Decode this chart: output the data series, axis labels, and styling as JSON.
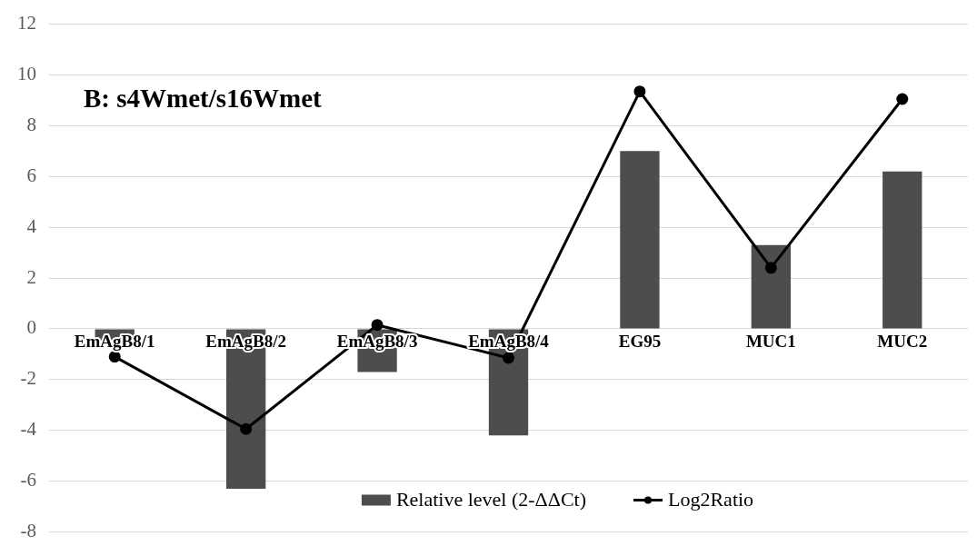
{
  "chart_data": {
    "type": "bar",
    "title": "B: s4Wmet/s16Wmet",
    "categories": [
      "EmAgB8/1",
      "EmAgB8/2",
      "EmAgB8/3",
      "EmAgB8/4",
      "EG95",
      "MUC1",
      "MUC2"
    ],
    "series": [
      {
        "name": "Relative level (2-ΔΔCt)",
        "color": "#4d4d4d",
        "values": [
          -0.45,
          -6.3,
          -1.7,
          -4.2,
          7.0,
          3.3,
          6.2
        ]
      },
      {
        "name": "Log2Ratio",
        "type": "line",
        "color": "#000000",
        "values": [
          -1.1,
          -3.95,
          0.15,
          -1.15,
          9.35,
          2.4,
          9.05
        ]
      }
    ],
    "ylim": [
      -8,
      12
    ],
    "yticks": [
      -8,
      -6,
      -4,
      -2,
      0,
      2,
      4,
      6,
      8,
      10,
      12
    ],
    "grid": "y",
    "legend": "bottom",
    "marker": "circle",
    "line_style": "solid"
  }
}
